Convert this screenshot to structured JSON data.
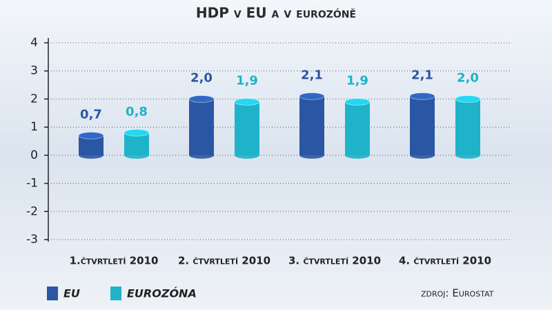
{
  "chart_data": {
    "type": "bar",
    "title": "HDP v EU a v eurozóně",
    "categories": [
      "1.čtvrtletí  2010",
      "2. čtvrtletí 2010",
      "3. čtvrtletí 2010",
      "4. čtvrtletí 2010"
    ],
    "series": [
      {
        "name": "EU",
        "color": "#2a56a4",
        "values": [
          0.7,
          2.0,
          2.1,
          2.1
        ],
        "value_labels": [
          "0,7",
          "2,0",
          "2,1",
          "2,1"
        ]
      },
      {
        "name": "EUROZÓNA",
        "color": "#1fb3c9",
        "values": [
          0.8,
          1.9,
          1.9,
          2.0
        ],
        "value_labels": [
          "0,8",
          "1,9",
          "1,9",
          "2,0"
        ]
      }
    ],
    "ylim": [
      -3,
      4
    ],
    "yticks": [
      -3,
      -2,
      -1,
      0,
      1,
      2,
      3,
      4
    ],
    "grid": true,
    "source": "zdroj: Eurostat"
  }
}
